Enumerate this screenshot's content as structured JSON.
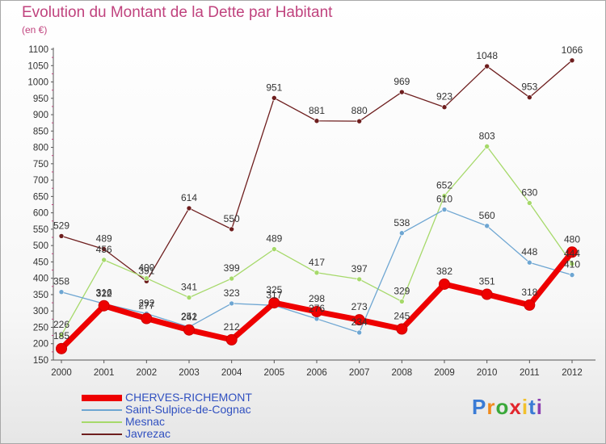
{
  "title": "Evolution du Montant de la Dette par Habitant",
  "unit_label": "(en €)",
  "logo_text": "Proxiti",
  "chart_data": {
    "type": "line",
    "title": "Evolution du Montant de la Dette par Habitant",
    "ylabel": "(en €)",
    "xlabel": "",
    "x": [
      "2000",
      "2001",
      "2002",
      "2003",
      "2004",
      "2005",
      "2006",
      "2007",
      "2008",
      "2009",
      "2010",
      "2011",
      "2012"
    ],
    "ylim": [
      150,
      1100
    ],
    "yticks": [
      150,
      200,
      250,
      300,
      350,
      400,
      450,
      500,
      550,
      600,
      650,
      700,
      750,
      800,
      850,
      900,
      950,
      1000,
      1050,
      1100
    ],
    "grid": false,
    "legend_position": "bottom-left",
    "series": [
      {
        "name": "Javrezac",
        "color": "#6e1e1e",
        "values": [
          529,
          489,
          391,
          614,
          550,
          951,
          881,
          880,
          969,
          923,
          1048,
          953,
          1066
        ]
      },
      {
        "name": "Mesnac",
        "color": "#a6d96a",
        "values": [
          226,
          456,
          400,
          341,
          399,
          489,
          417,
          397,
          329,
          652,
          803,
          630,
          444
        ]
      },
      {
        "name": "Saint-Sulpice-de-Cognac",
        "color": "#6ea6d2",
        "values": [
          358,
          322,
          292,
          251,
          323,
          317,
          276,
          234,
          538,
          610,
          560,
          448,
          410
        ]
      },
      {
        "name": "CHERVES-RICHEMONT",
        "color": "#ee0000",
        "values": [
          185,
          316,
          277,
          242,
          212,
          325,
          298,
          273,
          245,
          382,
          351,
          318,
          480
        ]
      }
    ]
  }
}
